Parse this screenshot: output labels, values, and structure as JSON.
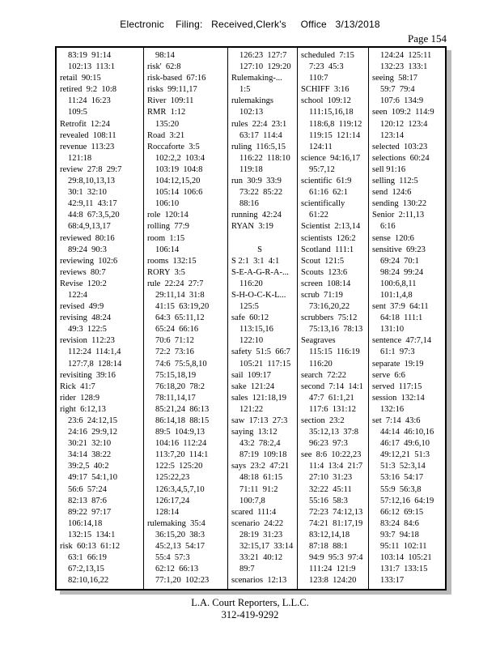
{
  "header": {
    "filing_line": "Electronic    Filing:   Received,Clerk's     Office   3/13/2018",
    "page_label": "Page 154"
  },
  "footer": {
    "company": "L.A. Court Reporters, L.L.C.",
    "phone": "312-419-9292"
  },
  "index": {
    "columns": [
      {
        "lines": [
          [
            "83:19  91:14",
            1
          ],
          [
            "102:13  113:1",
            1
          ],
          [
            "retail  90:15",
            0
          ],
          [
            "retired  9:2  10:8",
            0
          ],
          [
            "11:24  16:23",
            1
          ],
          [
            "109:5",
            1
          ],
          [
            "Retrofit  12:24",
            0
          ],
          [
            "revealed  108:11",
            0
          ],
          [
            "revenue  113:23",
            0
          ],
          [
            "121:18",
            1
          ],
          [
            "review  27:8  29:7",
            0
          ],
          [
            "29:8,10,13,13",
            1
          ],
          [
            "30:1  32:10",
            1
          ],
          [
            "42:9,11  43:17",
            1
          ],
          [
            "44:8  67:3,5,20",
            1
          ],
          [
            "68:4,9,13,17",
            1
          ],
          [
            "reviewed  80:16",
            0
          ],
          [
            "89:24  90:3",
            1
          ],
          [
            "reviewing  102:6",
            0
          ],
          [
            "reviews  80:7",
            0
          ],
          [
            "Revise  120:2",
            0
          ],
          [
            "122:4",
            1
          ],
          [
            "revised  49:9",
            0
          ],
          [
            "revising  48:24",
            0
          ],
          [
            "49:3  122:5",
            1
          ],
          [
            "revision  112:23",
            0
          ],
          [
            "112:24  114:1,4",
            1
          ],
          [
            "127:7,8  128:14",
            1
          ],
          [
            "revisiting  39:16",
            0
          ],
          [
            "Rick  41:7",
            0
          ],
          [
            "rider  128:9",
            0
          ],
          [
            "right  6:12,13",
            0
          ],
          [
            "23:6  24:12,15",
            1
          ],
          [
            "24:16  29:9,12",
            1
          ],
          [
            "30:21  32:10",
            1
          ],
          [
            "34:14  38:22",
            1
          ],
          [
            "39:2,5  40:2",
            1
          ],
          [
            "49:17  54:1,10",
            1
          ],
          [
            "56:6  57:24",
            1
          ],
          [
            "82:13  87:6",
            1
          ],
          [
            "89:22  97:17",
            1
          ],
          [
            "106:14,18",
            1
          ],
          [
            "132:15  134:1",
            1
          ],
          [
            "risk  60:13  61:12",
            0
          ],
          [
            "63:1  66:19",
            1
          ],
          [
            "67:2,13,15",
            1
          ],
          [
            "82:10,16,22",
            1
          ]
        ]
      },
      {
        "lines": [
          [
            "98:14",
            1
          ],
          [
            "risk'  62:8",
            0
          ],
          [
            "risk-based  67:16",
            0
          ],
          [
            "risks  99:11,17",
            0
          ],
          [
            "River  109:11",
            0
          ],
          [
            "RMR  1:12",
            0
          ],
          [
            "135:20",
            1
          ],
          [
            "Road  3:21",
            0
          ],
          [
            "Roccaforte  3:5",
            0
          ],
          [
            "102:2,2  103:4",
            1
          ],
          [
            "103:19  104:8",
            1
          ],
          [
            "104:12,15,20",
            1
          ],
          [
            "105:14  106:6",
            1
          ],
          [
            "106:10",
            1
          ],
          [
            "role  120:14",
            0
          ],
          [
            "rolling  77:9",
            0
          ],
          [
            "room  1:15",
            0
          ],
          [
            "106:14",
            1
          ],
          [
            "rooms  132:15",
            0
          ],
          [
            "RORY  3:5",
            0
          ],
          [
            "rule  22:24  27:7",
            0
          ],
          [
            "29:11,14  31:8",
            1
          ],
          [
            "41:15  63:19,20",
            1
          ],
          [
            "64:3  65:11,12",
            1
          ],
          [
            "65:24  66:16",
            1
          ],
          [
            "70:6  71:12",
            1
          ],
          [
            "72:2  73:16",
            1
          ],
          [
            "74:6  75:5,8,10",
            1
          ],
          [
            "75:15,18,19",
            1
          ],
          [
            "76:18,20  78:2",
            1
          ],
          [
            "78:11,14,17",
            1
          ],
          [
            "85:21,24  86:13",
            1
          ],
          [
            "86:14,18  88:15",
            1
          ],
          [
            "89:5  104:9,13",
            1
          ],
          [
            "104:16  112:24",
            1
          ],
          [
            "113:7,20  114:1",
            1
          ],
          [
            "122:5  125:20",
            1
          ],
          [
            "125:22,23",
            1
          ],
          [
            "126:3,4,5,7,10",
            1
          ],
          [
            "126:17,24",
            1
          ],
          [
            "128:14",
            1
          ],
          [
            "rulemaking  35:4",
            0
          ],
          [
            "36:15,20  38:3",
            1
          ],
          [
            "45:2,13  54:17",
            1
          ],
          [
            "55:4  57:3",
            1
          ],
          [
            "62:12  66:13",
            1
          ],
          [
            "77:1,20  102:23",
            1
          ]
        ]
      },
      {
        "lines": [
          [
            "126:23  127:7",
            1
          ],
          [
            "127:10  129:20",
            1
          ],
          [
            "Rulemaking-...",
            0
          ],
          [
            "1:5",
            1
          ],
          [
            "rulemakings",
            0
          ],
          [
            "102:13",
            1
          ],
          [
            "rules  22:4  23:1",
            0
          ],
          [
            "63:17  114:4",
            1
          ],
          [
            "ruling  116:5,15",
            0
          ],
          [
            "116:22  118:10",
            1
          ],
          [
            "119:18",
            1
          ],
          [
            "run  30:9  33:9",
            0
          ],
          [
            "73:22  85:22",
            1
          ],
          [
            "88:16",
            1
          ],
          [
            "running  42:24",
            0
          ],
          [
            "RYAN  3:19",
            0
          ],
          [
            "",
            0
          ],
          [
            "S",
            2
          ],
          [
            "S 2:1  3:1  4:1",
            0
          ],
          [
            "S-E-A-G-R-A-...",
            0
          ],
          [
            "116:20",
            1
          ],
          [
            "S-H-O-C-K-L...",
            0
          ],
          [
            "125:5",
            1
          ],
          [
            "safe  60:12",
            0
          ],
          [
            "113:15,16",
            1
          ],
          [
            "122:10",
            1
          ],
          [
            "safety  51:5  66:7",
            0
          ],
          [
            "105:21  117:15",
            1
          ],
          [
            "sail  109:17",
            0
          ],
          [
            "sake  121:24",
            0
          ],
          [
            "sales  121:18,19",
            0
          ],
          [
            "121:22",
            1
          ],
          [
            "saw  17:13  27:3",
            0
          ],
          [
            "saying  13:12",
            0
          ],
          [
            "43:2  78:2,4",
            1
          ],
          [
            "87:19  109:18",
            1
          ],
          [
            "says  23:2  47:21",
            0
          ],
          [
            "48:18  61:15",
            1
          ],
          [
            "71:11  91:2",
            1
          ],
          [
            "100:7,8",
            1
          ],
          [
            "scared  111:4",
            0
          ],
          [
            "scenario  24:22",
            0
          ],
          [
            "28:19  31:23",
            1
          ],
          [
            "32:15,17  33:14",
            1
          ],
          [
            "33:21  40:12",
            1
          ],
          [
            "89:7",
            1
          ],
          [
            "scenarios  12:13",
            0
          ]
        ]
      },
      {
        "lines": [
          [
            "scheduled  7:15",
            0
          ],
          [
            "7:23  45:3",
            1
          ],
          [
            "110:7",
            1
          ],
          [
            "SCHIFF  3:16",
            0
          ],
          [
            "school  109:12",
            0
          ],
          [
            "111:15,16,18",
            1
          ],
          [
            "118:6,8  119:12",
            1
          ],
          [
            "119:15  121:14",
            1
          ],
          [
            "124:11",
            1
          ],
          [
            "science  94:16,17",
            0
          ],
          [
            "95:7,12",
            1
          ],
          [
            "scientific  61:9",
            0
          ],
          [
            "61:16  62:1",
            1
          ],
          [
            "scientifically",
            0
          ],
          [
            "61:22",
            1
          ],
          [
            "Scientist  2:13,14",
            0
          ],
          [
            "scientists  126:2",
            0
          ],
          [
            "Scotland  111:1",
            0
          ],
          [
            "Scout  121:5",
            0
          ],
          [
            "Scouts  123:6",
            0
          ],
          [
            "screen  108:14",
            0
          ],
          [
            "scrub  71:19",
            0
          ],
          [
            "73:16,20,22",
            1
          ],
          [
            "scrubbers  75:12",
            0
          ],
          [
            "75:13,16  78:13",
            1
          ],
          [
            "Seagraves",
            0
          ],
          [
            "115:15  116:19",
            1
          ],
          [
            "116:20",
            1
          ],
          [
            "search  72:22",
            0
          ],
          [
            "second  7:14  14:1",
            0
          ],
          [
            "47:7  61:1,21",
            1
          ],
          [
            "117:6  131:12",
            1
          ],
          [
            "section  23:2",
            0
          ],
          [
            "35:12,13  37:8",
            1
          ],
          [
            "96:23  97:3",
            1
          ],
          [
            "see  8:6  10:22,23",
            0
          ],
          [
            "11:4  13:4  21:7",
            1
          ],
          [
            "27:10  31:23",
            1
          ],
          [
            "32:22  45:11",
            1
          ],
          [
            "55:16  58:3",
            1
          ],
          [
            "72:23  74:12,13",
            1
          ],
          [
            "74:21  81:17,19",
            1
          ],
          [
            "83:12,14,18",
            1
          ],
          [
            "87:18  88:1",
            1
          ],
          [
            "94:9  95:3  97:4",
            1
          ],
          [
            "111:24  121:9",
            1
          ],
          [
            "123:8  124:20",
            1
          ]
        ]
      },
      {
        "lines": [
          [
            "124:24  125:11",
            1
          ],
          [
            "132:23  133:1",
            1
          ],
          [
            "seeing  58:17",
            0
          ],
          [
            "59:7  79:4",
            1
          ],
          [
            "107:6  134:9",
            1
          ],
          [
            "seen  109:2  114:9",
            0
          ],
          [
            "120:12  123:4",
            1
          ],
          [
            "123:14",
            1
          ],
          [
            "selected  103:23",
            0
          ],
          [
            "selections  60:24",
            0
          ],
          [
            "sell 91:16",
            0
          ],
          [
            "selling  112:5",
            0
          ],
          [
            "send  124:6",
            0
          ],
          [
            "sending  130:22",
            0
          ],
          [
            "Senior  2:11,13",
            0
          ],
          [
            "6:16",
            1
          ],
          [
            "sense  120:6",
            0
          ],
          [
            "sensitive  69:23",
            0
          ],
          [
            "69:24  70:1",
            1
          ],
          [
            "98:24  99:24",
            1
          ],
          [
            "100:6,8,11",
            1
          ],
          [
            "101:1,4,8",
            1
          ],
          [
            "sent  37:9  64:11",
            0
          ],
          [
            "64:18  111:1",
            1
          ],
          [
            "131:10",
            1
          ],
          [
            "sentence  47:7,14",
            0
          ],
          [
            "61:1  97:3",
            1
          ],
          [
            "separate  19:19",
            0
          ],
          [
            "serve  6:6",
            0
          ],
          [
            "served  117:15",
            0
          ],
          [
            "session  132:14",
            0
          ],
          [
            "132:16",
            1
          ],
          [
            "set  7:14  43:6",
            0
          ],
          [
            "44:14  46:10,16",
            1
          ],
          [
            "46:17  49:6,10",
            1
          ],
          [
            "49:12,21  51:3",
            1
          ],
          [
            "51:3  52:3,14",
            1
          ],
          [
            "53:16  54:17",
            1
          ],
          [
            "55:9  56:3,8",
            1
          ],
          [
            "57:12,16  64:19",
            1
          ],
          [
            "66:12  69:15",
            1
          ],
          [
            "83:24  84:6",
            1
          ],
          [
            "93:7  94:18",
            1
          ],
          [
            "95:11  102:11",
            1
          ],
          [
            "103:14  105:21",
            1
          ],
          [
            "131:7  133:15",
            1
          ],
          [
            "133:17",
            1
          ]
        ]
      }
    ]
  }
}
